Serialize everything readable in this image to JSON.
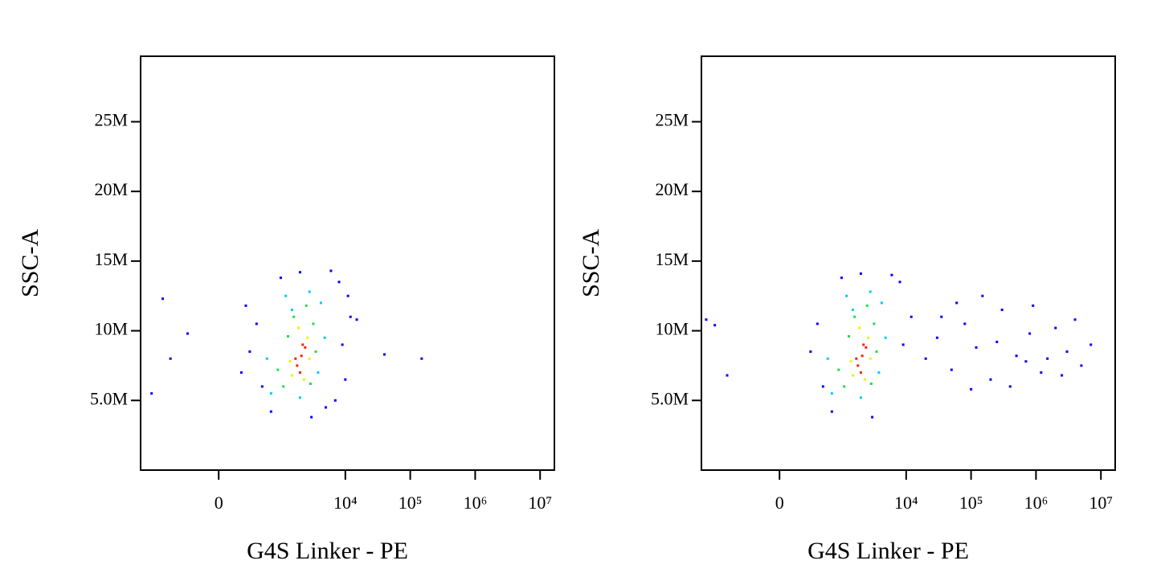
{
  "chart_data": [
    {
      "type": "scatter",
      "xlabel": "G4S Linker - PE",
      "ylabel": "SSC-A",
      "xscale": "biexponential",
      "xlim": [
        -1780,
        16600000
      ],
      "ylim": [
        0,
        29700000
      ],
      "xticks": [
        0,
        {
          "value": 10000,
          "label": "10⁴"
        },
        {
          "value": 100000,
          "label": "10⁵"
        },
        {
          "value": 1000000,
          "label": "10⁶"
        },
        {
          "value": 10000000,
          "label": "10⁷"
        }
      ],
      "yticks": [
        {
          "value": 5000000,
          "label": "5.0M"
        },
        {
          "value": 10000000,
          "label": "10M"
        },
        {
          "value": 15000000,
          "label": "15M"
        },
        {
          "value": 20000000,
          "label": "20M"
        },
        {
          "value": 25000000,
          "label": "25M"
        }
      ],
      "series": [
        {
          "color": "#0000ff",
          "x": [
            300,
            500,
            8000,
            12000,
            6000,
            9000,
            10000,
            400,
            200,
            15000,
            -300,
            -800,
            -1200,
            -600,
            700,
            5000,
            3000,
            1000,
            40000,
            150000,
            7000,
            11000,
            2000,
            250
          ],
          "values": [
            8500000,
            6000000,
            13500000,
            11000000,
            14300000,
            9000000,
            6500000,
            10500000,
            7000000,
            10800000,
            9800000,
            12300000,
            5500000,
            8000000,
            4200000,
            4500000,
            3800000,
            13800000,
            8300000,
            8000000,
            5000000,
            12500000,
            14200000,
            11800000
          ]
        },
        {
          "color": "#00c8ff",
          "x": [
            700,
            4200,
            1200,
            4800,
            2800,
            3800,
            600,
            2000,
            1500
          ],
          "values": [
            5500000,
            12000000,
            12500000,
            9500000,
            12800000,
            7000000,
            8000000,
            5200000,
            11500000
          ]
        },
        {
          "color": "#20e040",
          "x": [
            1100,
            3200,
            1600,
            3500,
            2500,
            900,
            2900,
            1300
          ],
          "values": [
            6000000,
            10500000,
            11000000,
            8500000,
            11800000,
            7200000,
            6200000,
            9600000
          ]
        },
        {
          "color": "#f0f000",
          "x": [
            1500,
            2600,
            1900,
            2800,
            1400,
            2300
          ],
          "values": [
            6800000,
            9500000,
            10200000,
            8000000,
            7800000,
            6500000
          ]
        },
        {
          "color": "#ff2000",
          "x": [
            1800,
            2100,
            2400,
            2000,
            1700,
            2200
          ],
          "values": [
            7500000,
            8200000,
            8800000,
            7000000,
            8000000,
            9000000
          ]
        }
      ]
    },
    {
      "type": "scatter",
      "xlabel": "G4S Linker - PE",
      "ylabel": "SSC-A",
      "xscale": "biexponential",
      "xlim": [
        -1780,
        16600000
      ],
      "ylim": [
        0,
        29700000
      ],
      "xticks": [
        0,
        {
          "value": 10000,
          "label": "10⁴"
        },
        {
          "value": 100000,
          "label": "10⁵"
        },
        {
          "value": 1000000,
          "label": "10⁶"
        },
        {
          "value": 10000000,
          "label": "10⁷"
        }
      ],
      "yticks": [
        {
          "value": 5000000,
          "label": "5.0M"
        },
        {
          "value": 10000000,
          "label": "10M"
        },
        {
          "value": 15000000,
          "label": "15M"
        },
        {
          "value": 20000000,
          "label": "20M"
        },
        {
          "value": 25000000,
          "label": "25M"
        }
      ],
      "series": [
        {
          "color": "#0000ff",
          "x": [
            20000,
            30000,
            50000,
            80000,
            120000,
            200000,
            300000,
            500000,
            800000,
            1200000,
            2000000,
            3000000,
            5000000,
            7000000,
            150000,
            400000,
            900000,
            2500000,
            60000,
            1500000,
            4000000,
            250000,
            700000,
            100000,
            35000,
            -1500,
            -1100,
            -700,
            300,
            500,
            8000,
            12000,
            6000,
            9000,
            400,
            700,
            3000,
            1000,
            2000
          ],
          "values": [
            8000000,
            9500000,
            7200000,
            10500000,
            8800000,
            6500000,
            11500000,
            8200000,
            9800000,
            7000000,
            10200000,
            8500000,
            7500000,
            9000000,
            12500000,
            6000000,
            11800000,
            6800000,
            12000000,
            8000000,
            10800000,
            9200000,
            7800000,
            5800000,
            11000000,
            10800000,
            10400000,
            6800000,
            8500000,
            6000000,
            13500000,
            11000000,
            14000000,
            9000000,
            10500000,
            4200000,
            3800000,
            13800000,
            14100000
          ]
        },
        {
          "color": "#00c8ff",
          "x": [
            700,
            4200,
            1200,
            4800,
            2800,
            3800,
            600,
            2000,
            1500
          ],
          "values": [
            5500000,
            12000000,
            12500000,
            9500000,
            12800000,
            7000000,
            8000000,
            5200000,
            11500000
          ]
        },
        {
          "color": "#20e040",
          "x": [
            1100,
            3200,
            1600,
            3500,
            2500,
            900,
            2900,
            1300
          ],
          "values": [
            6000000,
            10500000,
            11000000,
            8500000,
            11800000,
            7200000,
            6200000,
            9600000
          ]
        },
        {
          "color": "#f0f000",
          "x": [
            1500,
            2600,
            1900,
            2800,
            1400,
            2300
          ],
          "values": [
            6800000,
            9500000,
            10200000,
            8000000,
            7800000,
            6500000
          ]
        },
        {
          "color": "#ff2000",
          "x": [
            1800,
            2100,
            2400,
            2000,
            1700,
            2200
          ],
          "values": [
            7500000,
            8200000,
            8800000,
            7000000,
            8000000,
            9000000
          ]
        }
      ]
    }
  ]
}
